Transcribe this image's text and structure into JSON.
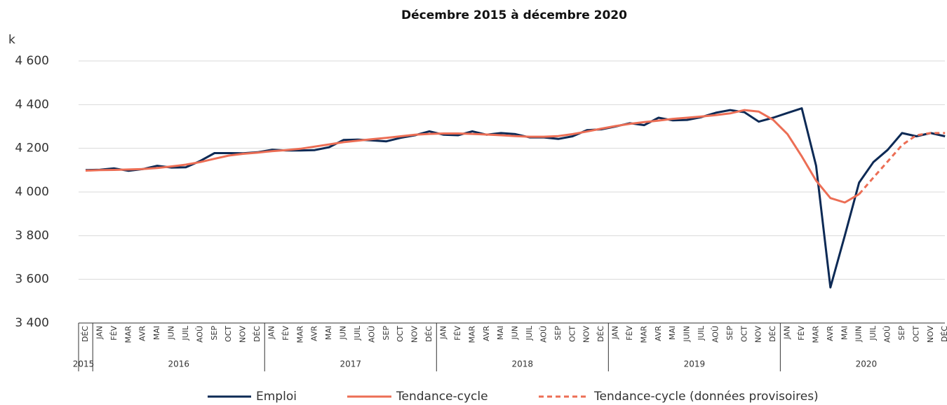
{
  "chart_data": {
    "type": "line",
    "title": "Décembre 2015 à décembre 2020",
    "y_unit": "k",
    "categories": [
      "DÉC",
      "JAN",
      "FÉV",
      "MAR",
      "AVR",
      "MAI",
      "JUN",
      "JUIL",
      "AOÛ",
      "SEP",
      "OCT",
      "NOV",
      "DÉC",
      "JAN",
      "FÉV",
      "MAR",
      "AVR",
      "MAI",
      "JUN",
      "JUIL",
      "AOÛ",
      "SEP",
      "OCT",
      "NOV",
      "DÉC",
      "JAN",
      "FÉV",
      "MAR",
      "AVR",
      "MAI",
      "JUN",
      "JUIL",
      "AOÛ",
      "SEP",
      "OCT",
      "NOV",
      "DÉC",
      "JAN",
      "FÉV",
      "MAR",
      "AVR",
      "MAI",
      "JUIN",
      "JUIL",
      "AOÛ",
      "SEP",
      "OCT",
      "NOV",
      "DÉC",
      "JAN",
      "FÉV",
      "MAR",
      "AVR",
      "MAI",
      "JUIN",
      "JUIL",
      "AOÛ",
      "SEP",
      "OCT",
      "NOV",
      "DÉC"
    ],
    "years": [
      "2015",
      "2016",
      "2017",
      "2018",
      "2019",
      "2020"
    ],
    "series": [
      {
        "name": "Emploi",
        "color": "#0d2a55",
        "style": "solid",
        "values": [
          4100,
          4102,
          4108,
          4097,
          4105,
          4120,
          4112,
          4113,
          4142,
          4178,
          4178,
          4177,
          4182,
          4193,
          4190,
          4190,
          4192,
          4205,
          4238,
          4240,
          4236,
          4232,
          4248,
          4260,
          4278,
          4262,
          4260,
          4278,
          4262,
          4270,
          4265,
          4250,
          4250,
          4243,
          4255,
          4283,
          4287,
          4300,
          4315,
          4306,
          4340,
          4328,
          4330,
          4343,
          4363,
          4375,
          4365,
          4322,
          4340,
          4362,
          4383,
          4120,
          3563,
          3800,
          4043,
          4137,
          4193,
          4270,
          4255,
          4270,
          4255
        ]
      },
      {
        "name": "Tendance-cycle",
        "color": "#ec6e55",
        "style": "solid",
        "values": [
          4098,
          4100,
          4101,
          4103,
          4105,
          4110,
          4117,
          4125,
          4137,
          4152,
          4167,
          4175,
          4180,
          4187,
          4192,
          4198,
          4208,
          4218,
          4228,
          4235,
          4242,
          4248,
          4255,
          4262,
          4266,
          4268,
          4268,
          4266,
          4263,
          4260,
          4256,
          4253,
          4253,
          4256,
          4265,
          4277,
          4290,
          4302,
          4312,
          4320,
          4327,
          4335,
          4340,
          4346,
          4352,
          4360,
          4375,
          4368,
          4330,
          4265,
          4163,
          4052,
          3972,
          3952,
          3990,
          null,
          null,
          null,
          null,
          null,
          null
        ]
      },
      {
        "name": "Tendance-cycle (données provisoires)",
        "color": "#ec6e55",
        "style": "dashed",
        "values": [
          null,
          null,
          null,
          null,
          null,
          null,
          null,
          null,
          null,
          null,
          null,
          null,
          null,
          null,
          null,
          null,
          null,
          null,
          null,
          null,
          null,
          null,
          null,
          null,
          null,
          null,
          null,
          null,
          null,
          null,
          null,
          null,
          null,
          null,
          null,
          null,
          null,
          null,
          null,
          null,
          null,
          null,
          null,
          null,
          null,
          null,
          null,
          null,
          null,
          null,
          null,
          null,
          null,
          null,
          3990,
          4066,
          4140,
          4215,
          4260,
          4270,
          4270
        ]
      }
    ],
    "ylim": [
      3400,
      4600
    ],
    "yticks": [
      {
        "value": 3400,
        "label": "3 400"
      },
      {
        "value": 3600,
        "label": "3 600"
      },
      {
        "value": 3800,
        "label": "3 800"
      },
      {
        "value": 4000,
        "label": "4 000"
      },
      {
        "value": 4200,
        "label": "4 200"
      },
      {
        "value": 4400,
        "label": "4 400"
      },
      {
        "value": 4600,
        "label": "4 600"
      }
    ],
    "grid": true
  }
}
